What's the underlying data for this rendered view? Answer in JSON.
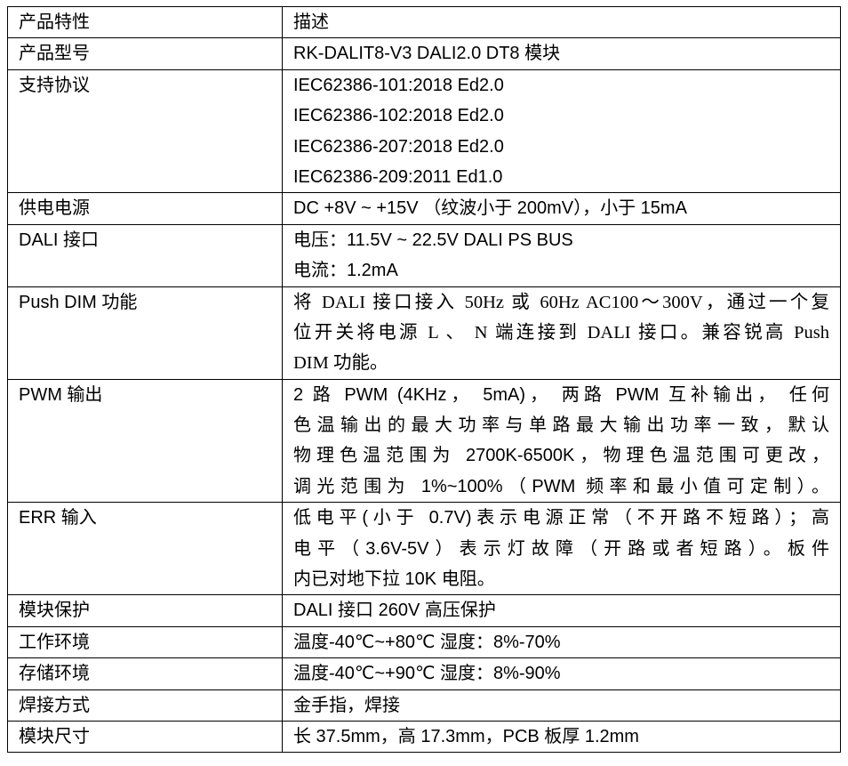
{
  "table": {
    "header": {
      "key": "产品特性",
      "value": "描述"
    },
    "rows": [
      {
        "key": "产品型号",
        "lines": [
          "RK-DALIT8-V3 DALI2.0 DT8 模块"
        ]
      },
      {
        "key": "支持协议",
        "lines": [
          "IEC62386-101:2018 Ed2.0",
          "IEC62386-102:2018 Ed2.0",
          "IEC62386-207:2018 Ed2.0",
          "IEC62386-209:2011 Ed1.0"
        ]
      },
      {
        "key": "供电电源",
        "lines": [
          "DC +8V ~ +15V （纹波小于 200mV），小于 15mA"
        ]
      },
      {
        "key": "DALI 接口",
        "lines": [
          "电压：11.5V ~ 22.5V DALI PS BUS",
          "电流：1.2mA"
        ]
      },
      {
        "key": "Push DIM 功能",
        "lines": [
          "将 DALI 接口接入 50Hz 或 60Hz AC100～300V，通过一个复",
          "位开关将电源 L 、 N 端连接到 DALI 接口。兼容锐高 Push",
          "DIM 功能。"
        ]
      },
      {
        "key": "PWM 输出",
        "lines": [
          "2 路 PWM (4KHz， 5mA)， 两路 PWM 互补输出， 任何",
          "色温输出的最大功率与单路最大输出功率一致，默认",
          "物理色温范围为 2700K-6500K，物理色温范围可更改，",
          "调光范围为 1%~100%（PWM 频率和最小值可定制）。"
        ]
      },
      {
        "key": "ERR 输入",
        "lines": [
          "低电平(小于 0.7V)表示电源正常（不开路不短路）；高",
          "电平（3.6V-5V）表示灯故障（开路或者短路）。板件",
          "内已对地下拉 10K 电阻。"
        ]
      },
      {
        "key": "模块保护",
        "lines": [
          "DALI 接口 260V 高压保护"
        ]
      },
      {
        "key": "工作环境",
        "lines": [
          "温度-40℃~+80℃ 湿度：8%-70%"
        ]
      },
      {
        "key": "存储环境",
        "lines": [
          "温度-40℃~+90℃ 湿度：8%-90%"
        ]
      },
      {
        "key": "焊接方式",
        "lines": [
          "金手指，焊接"
        ]
      },
      {
        "key": "模块尺寸",
        "lines": [
          "长 37.5mm，高 17.3mm，PCB 板厚 1.2mm"
        ]
      }
    ]
  }
}
